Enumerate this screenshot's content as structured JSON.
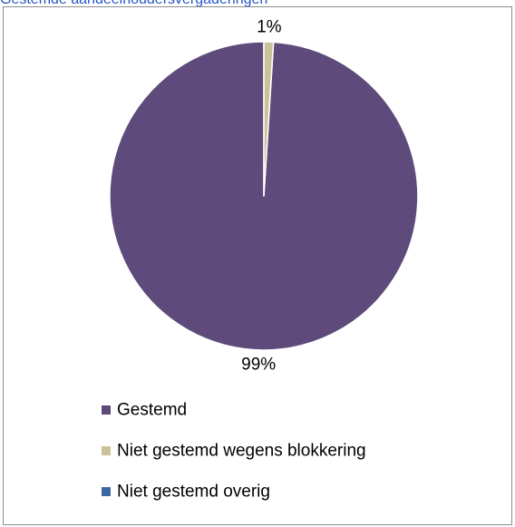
{
  "page": {
    "title": "Gestemde aandeelhoudersvergaderingen"
  },
  "chart_data": {
    "type": "pie",
    "title": "",
    "categories": [
      "Gestemd",
      "Niet gestemd wegens blokkering",
      "Niet gestemd overig"
    ],
    "values": [
      99,
      1,
      0
    ],
    "data_labels": [
      "99%",
      "1%",
      ""
    ],
    "colors": [
      "#5e4a7b",
      "#ccc29a",
      "#3c6aa0"
    ],
    "legend_position": "bottom",
    "start_angle_deg": 0,
    "direction": "counterclockwise"
  }
}
